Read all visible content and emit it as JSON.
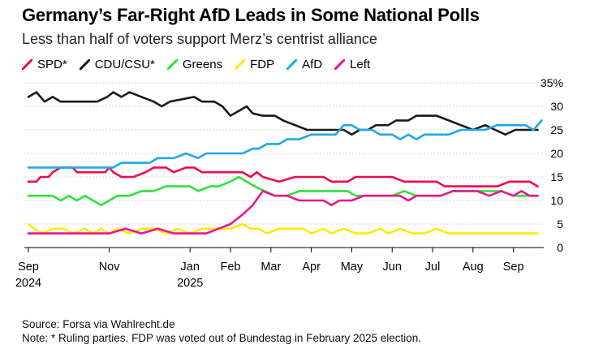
{
  "title": "Germany’s Far-Right AfD Leads in Some National Polls",
  "subtitle": "Less than half of voters support Merz’s centrist alliance",
  "source": "Source: Forsa via Wahlrecht.de",
  "note": "Note: * Ruling parties. FDP was voted out of Bundestag in February 2025 election.",
  "chart_data": {
    "type": "line",
    "title": "Germany’s Far-Right AfD Leads in Some National Polls",
    "xlabel": "",
    "ylabel": "",
    "ylim": [
      0,
      35
    ],
    "grid": true,
    "y_unit_label": "35%",
    "y_ticks": [
      "35%",
      "30",
      "25",
      "20",
      "15",
      "10",
      "5",
      "0"
    ],
    "y_tick_values": [
      35,
      30,
      25,
      20,
      15,
      10,
      5,
      0
    ],
    "x_ticks": [
      {
        "label": "Sep",
        "sub": "2024",
        "t": 0
      },
      {
        "label": "Nov",
        "sub": "",
        "t": 2
      },
      {
        "label": "Jan",
        "sub": "2025",
        "t": 4
      },
      {
        "label": "Feb",
        "sub": "",
        "t": 5
      },
      {
        "label": "Mar",
        "sub": "",
        "t": 6
      },
      {
        "label": "Apr",
        "sub": "",
        "t": 7
      },
      {
        "label": "May",
        "sub": "",
        "t": 8
      },
      {
        "label": "Jun",
        "sub": "",
        "t": 9
      },
      {
        "label": "Jul",
        "sub": "",
        "t": 10
      },
      {
        "label": "Aug",
        "sub": "",
        "t": 11
      },
      {
        "label": "Sep",
        "sub": "",
        "t": 12
      }
    ],
    "x_range": [
      -0.1,
      12.75
    ],
    "series": [
      {
        "name": "SPD*",
        "color": "#ef0a4d",
        "points": [
          [
            0,
            14
          ],
          [
            0.2,
            14
          ],
          [
            0.3,
            15
          ],
          [
            0.5,
            15
          ],
          [
            0.6,
            16
          ],
          [
            0.8,
            17
          ],
          [
            1.1,
            17
          ],
          [
            1.2,
            16
          ],
          [
            1.5,
            16
          ],
          [
            1.9,
            16
          ],
          [
            2,
            17
          ],
          [
            2.1,
            16
          ],
          [
            2.3,
            15
          ],
          [
            2.6,
            15
          ],
          [
            2.9,
            16
          ],
          [
            3.1,
            17
          ],
          [
            3.4,
            17
          ],
          [
            3.6,
            16
          ],
          [
            3.9,
            17
          ],
          [
            4.1,
            17
          ],
          [
            4.3,
            16
          ],
          [
            4.6,
            16
          ],
          [
            5,
            16
          ],
          [
            5.3,
            16
          ],
          [
            5.5,
            15
          ],
          [
            5.65,
            16
          ],
          [
            5.8,
            15
          ],
          [
            6.2,
            14
          ],
          [
            6.6,
            15
          ],
          [
            7,
            15
          ],
          [
            7.3,
            15
          ],
          [
            7.5,
            14
          ],
          [
            7.9,
            14
          ],
          [
            8.1,
            15
          ],
          [
            8.6,
            15
          ],
          [
            9,
            15
          ],
          [
            9.3,
            14
          ],
          [
            9.8,
            14
          ],
          [
            10.1,
            14
          ],
          [
            10.3,
            13
          ],
          [
            10.7,
            13
          ],
          [
            11.1,
            13
          ],
          [
            11.6,
            13
          ],
          [
            11.9,
            14
          ],
          [
            12.2,
            14
          ],
          [
            12.4,
            14
          ],
          [
            12.6,
            13
          ]
        ]
      },
      {
        "name": "CDU/CSU*",
        "color": "#1a1a1a",
        "points": [
          [
            0,
            32
          ],
          [
            0.2,
            33
          ],
          [
            0.4,
            31
          ],
          [
            0.6,
            32
          ],
          [
            0.8,
            31
          ],
          [
            1,
            31
          ],
          [
            1.3,
            31
          ],
          [
            1.7,
            31
          ],
          [
            1.95,
            32
          ],
          [
            2.1,
            33
          ],
          [
            2.3,
            32
          ],
          [
            2.5,
            33
          ],
          [
            2.8,
            32
          ],
          [
            3.1,
            31
          ],
          [
            3.3,
            30
          ],
          [
            3.5,
            31
          ],
          [
            3.8,
            31.5
          ],
          [
            4.1,
            32
          ],
          [
            4.3,
            31
          ],
          [
            4.6,
            31
          ],
          [
            4.8,
            30
          ],
          [
            5,
            28
          ],
          [
            5.2,
            29
          ],
          [
            5.4,
            30
          ],
          [
            5.55,
            28.5
          ],
          [
            5.8,
            28
          ],
          [
            6.1,
            28
          ],
          [
            6.3,
            27
          ],
          [
            6.6,
            26
          ],
          [
            6.9,
            25
          ],
          [
            7.2,
            25
          ],
          [
            7.5,
            25
          ],
          [
            7.8,
            25
          ],
          [
            8,
            24
          ],
          [
            8.2,
            25
          ],
          [
            8.4,
            25
          ],
          [
            8.6,
            26
          ],
          [
            8.9,
            26
          ],
          [
            9.1,
            27
          ],
          [
            9.4,
            27
          ],
          [
            9.6,
            28
          ],
          [
            9.9,
            28
          ],
          [
            10.1,
            28
          ],
          [
            10.4,
            27
          ],
          [
            10.7,
            26
          ],
          [
            11,
            25
          ],
          [
            11.3,
            26
          ],
          [
            11.55,
            25
          ],
          [
            11.8,
            24
          ],
          [
            12.05,
            25
          ],
          [
            12.4,
            25
          ],
          [
            12.6,
            25
          ]
        ]
      },
      {
        "name": "Greens",
        "color": "#2fe23b",
        "points": [
          [
            0,
            11
          ],
          [
            0.3,
            11
          ],
          [
            0.6,
            11
          ],
          [
            0.8,
            10
          ],
          [
            1,
            11
          ],
          [
            1.2,
            10
          ],
          [
            1.4,
            11
          ],
          [
            1.6,
            10
          ],
          [
            1.8,
            9
          ],
          [
            2,
            10
          ],
          [
            2.2,
            11
          ],
          [
            2.5,
            11
          ],
          [
            2.8,
            12
          ],
          [
            3.1,
            12
          ],
          [
            3.4,
            13
          ],
          [
            3.7,
            13
          ],
          [
            4,
            13
          ],
          [
            4.2,
            12
          ],
          [
            4.5,
            13
          ],
          [
            4.7,
            13
          ],
          [
            5,
            14
          ],
          [
            5.2,
            15
          ],
          [
            5.4,
            14
          ],
          [
            5.6,
            13
          ],
          [
            5.85,
            12
          ],
          [
            6.1,
            11
          ],
          [
            6.4,
            11
          ],
          [
            6.7,
            12
          ],
          [
            7,
            12
          ],
          [
            7.3,
            12
          ],
          [
            7.6,
            12
          ],
          [
            7.9,
            12
          ],
          [
            8.1,
            11
          ],
          [
            8.4,
            11
          ],
          [
            8.7,
            11
          ],
          [
            9,
            11
          ],
          [
            9.3,
            12
          ],
          [
            9.6,
            11
          ],
          [
            9.9,
            11
          ],
          [
            10.2,
            11
          ],
          [
            10.5,
            12
          ],
          [
            10.8,
            12
          ],
          [
            11.1,
            12
          ],
          [
            11.4,
            12
          ],
          [
            11.7,
            12
          ],
          [
            12,
            11
          ],
          [
            12.3,
            11
          ],
          [
            12.6,
            11
          ]
        ]
      },
      {
        "name": "FDP",
        "color": "#ffea00",
        "points": [
          [
            0,
            5
          ],
          [
            0.15,
            4
          ],
          [
            0.35,
            3
          ],
          [
            0.6,
            4
          ],
          [
            0.9,
            4
          ],
          [
            1.1,
            3
          ],
          [
            1.4,
            4
          ],
          [
            1.6,
            3
          ],
          [
            1.8,
            4
          ],
          [
            2,
            3
          ],
          [
            2.2,
            4
          ],
          [
            2.5,
            3
          ],
          [
            2.8,
            4
          ],
          [
            3.1,
            4
          ],
          [
            3.4,
            3
          ],
          [
            3.7,
            4
          ],
          [
            4,
            3
          ],
          [
            4.3,
            4
          ],
          [
            4.6,
            4
          ],
          [
            5,
            4
          ],
          [
            5.3,
            5
          ],
          [
            5.5,
            4
          ],
          [
            5.7,
            4
          ],
          [
            5.9,
            3
          ],
          [
            6.2,
            4
          ],
          [
            6.5,
            4
          ],
          [
            6.8,
            4
          ],
          [
            7,
            3
          ],
          [
            7.3,
            4
          ],
          [
            7.5,
            3
          ],
          [
            7.8,
            4
          ],
          [
            8.1,
            3
          ],
          [
            8.4,
            3
          ],
          [
            8.7,
            4
          ],
          [
            8.9,
            3
          ],
          [
            9.2,
            4
          ],
          [
            9.5,
            3
          ],
          [
            9.8,
            3
          ],
          [
            10.1,
            4
          ],
          [
            10.4,
            3
          ],
          [
            10.8,
            3
          ],
          [
            11.2,
            3
          ],
          [
            11.6,
            3
          ],
          [
            12,
            3
          ],
          [
            12.3,
            3
          ],
          [
            12.6,
            3
          ]
        ]
      },
      {
        "name": "AfD",
        "color": "#1ea8e8",
        "points": [
          [
            0,
            17
          ],
          [
            0.4,
            17
          ],
          [
            0.8,
            17
          ],
          [
            1.2,
            17
          ],
          [
            1.6,
            17
          ],
          [
            1.9,
            17
          ],
          [
            2.1,
            17
          ],
          [
            2.3,
            18
          ],
          [
            2.7,
            18
          ],
          [
            3,
            18
          ],
          [
            3.2,
            19
          ],
          [
            3.6,
            19
          ],
          [
            3.9,
            20
          ],
          [
            4.2,
            19
          ],
          [
            4.4,
            20
          ],
          [
            4.7,
            20
          ],
          [
            5,
            20
          ],
          [
            5.3,
            20
          ],
          [
            5.55,
            21
          ],
          [
            5.7,
            21
          ],
          [
            5.9,
            22
          ],
          [
            6.2,
            22
          ],
          [
            6.4,
            23
          ],
          [
            6.7,
            23
          ],
          [
            7,
            24
          ],
          [
            7.3,
            24
          ],
          [
            7.6,
            24
          ],
          [
            7.8,
            26
          ],
          [
            8,
            26
          ],
          [
            8.2,
            25
          ],
          [
            8.5,
            25
          ],
          [
            8.7,
            24
          ],
          [
            9,
            24
          ],
          [
            9.2,
            23
          ],
          [
            9.4,
            24
          ],
          [
            9.6,
            23
          ],
          [
            9.8,
            24
          ],
          [
            10.1,
            24
          ],
          [
            10.4,
            24
          ],
          [
            10.7,
            25
          ],
          [
            11,
            25
          ],
          [
            11.3,
            25
          ],
          [
            11.6,
            26
          ],
          [
            12,
            26
          ],
          [
            12.3,
            26
          ],
          [
            12.5,
            25
          ],
          [
            12.7,
            27
          ]
        ]
      },
      {
        "name": "Left",
        "color": "#e8168f",
        "points": [
          [
            0,
            3
          ],
          [
            0.4,
            3
          ],
          [
            0.8,
            3
          ],
          [
            1.2,
            3
          ],
          [
            1.6,
            3
          ],
          [
            2,
            3
          ],
          [
            2.4,
            4
          ],
          [
            2.8,
            3
          ],
          [
            3.2,
            4
          ],
          [
            3.6,
            3
          ],
          [
            4,
            3
          ],
          [
            4.4,
            3
          ],
          [
            4.7,
            4
          ],
          [
            5,
            5
          ],
          [
            5.3,
            7
          ],
          [
            5.55,
            9
          ],
          [
            5.8,
            12
          ],
          [
            6.1,
            11
          ],
          [
            6.4,
            11
          ],
          [
            6.7,
            10
          ],
          [
            7,
            10
          ],
          [
            7.3,
            10
          ],
          [
            7.5,
            9
          ],
          [
            7.7,
            10
          ],
          [
            8,
            10
          ],
          [
            8.3,
            11
          ],
          [
            8.6,
            11
          ],
          [
            8.9,
            11
          ],
          [
            9.2,
            11
          ],
          [
            9.4,
            10
          ],
          [
            9.6,
            11
          ],
          [
            9.9,
            11
          ],
          [
            10.2,
            11
          ],
          [
            10.5,
            12
          ],
          [
            10.8,
            12
          ],
          [
            11.1,
            12
          ],
          [
            11.4,
            11
          ],
          [
            11.7,
            12
          ],
          [
            12,
            11
          ],
          [
            12.2,
            12
          ],
          [
            12.4,
            11
          ],
          [
            12.6,
            11
          ]
        ]
      }
    ]
  }
}
